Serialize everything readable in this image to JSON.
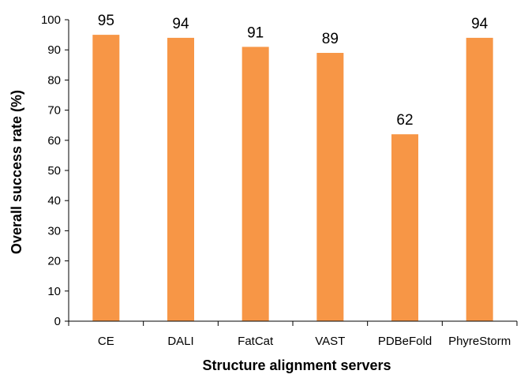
{
  "chart_data": {
    "type": "bar",
    "title": "",
    "xlabel": "Structure alignment servers",
    "ylabel": "Overall success rate (%)",
    "categories": [
      "CE",
      "DALI",
      "FatCat",
      "VAST",
      "PDBeFold",
      "PhyreStorm"
    ],
    "values": [
      95,
      94,
      91,
      89,
      62,
      94
    ],
    "data_labels": [
      "95",
      "94",
      "91",
      "89",
      "62",
      "94"
    ],
    "ylim": [
      0,
      100
    ],
    "yticks": [
      0,
      10,
      20,
      30,
      40,
      50,
      60,
      70,
      80,
      90,
      100
    ],
    "ytick_labels": [
      "0",
      "10",
      "20",
      "30",
      "40",
      "50",
      "60",
      "70",
      "80",
      "90",
      "100"
    ],
    "grid": false,
    "legend": "none",
    "bar_color": "#F79646"
  }
}
